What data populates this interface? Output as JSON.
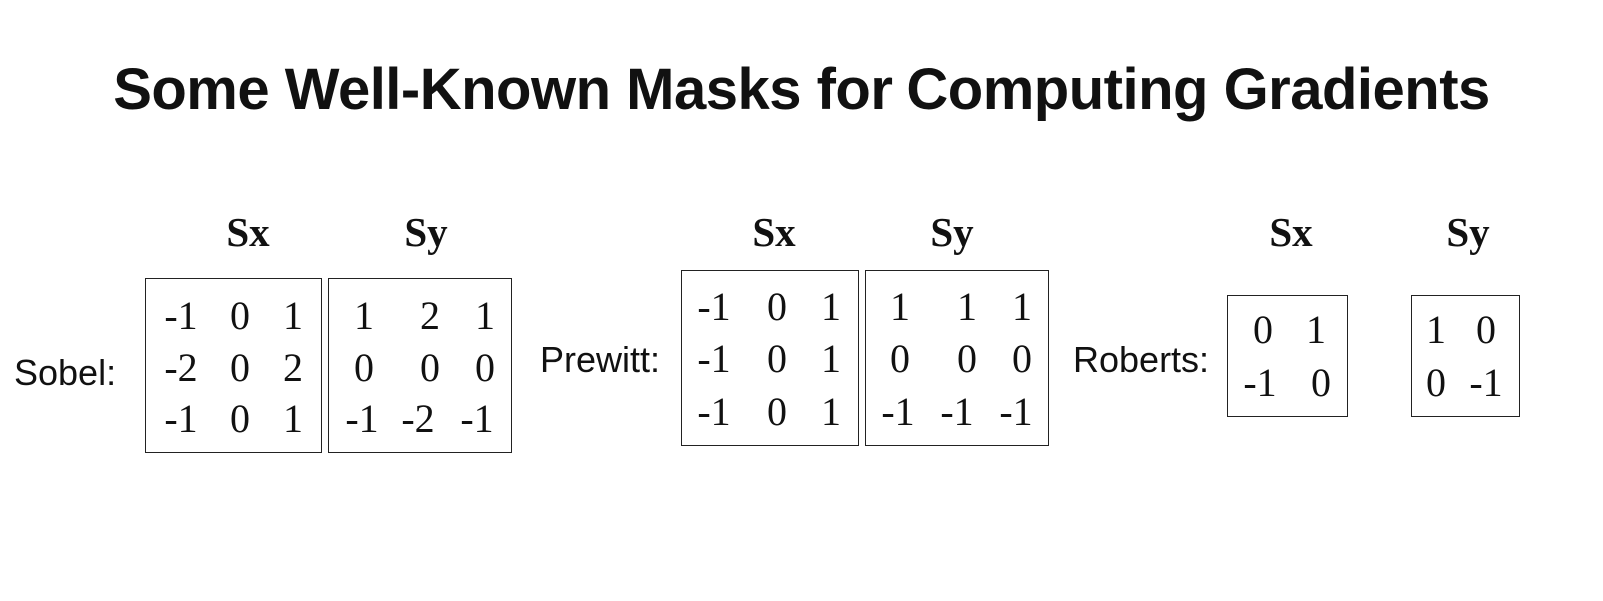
{
  "title": {
    "part1": "Some Well-Known Masks for",
    "part2": "Computing Gradients"
  },
  "operators": [
    {
      "name": "Sobel:",
      "sx_label": "Sx",
      "sy_label": "Sy",
      "sx": [
        [
          "-1",
          "0",
          "1"
        ],
        [
          "-2",
          "0",
          "2"
        ],
        [
          "-1",
          "0",
          "1"
        ]
      ],
      "sy": [
        [
          "1",
          "2",
          "1"
        ],
        [
          "0",
          "0",
          "0"
        ],
        [
          "-1",
          "-2",
          "-1"
        ]
      ]
    },
    {
      "name": "Prewitt:",
      "sx_label": "Sx",
      "sy_label": "Sy",
      "sx": [
        [
          "-1",
          "0",
          "1"
        ],
        [
          "-1",
          "0",
          "1"
        ],
        [
          "-1",
          "0",
          "1"
        ]
      ],
      "sy": [
        [
          "1",
          "1",
          "1"
        ],
        [
          "0",
          "0",
          "0"
        ],
        [
          "-1",
          "-1",
          "-1"
        ]
      ]
    },
    {
      "name": "Roberts:",
      "sx_label": "Sx",
      "sy_label": "Sy",
      "sx": [
        [
          "0",
          "1"
        ],
        [
          "-1",
          "0"
        ]
      ],
      "sy": [
        [
          "1",
          "0"
        ],
        [
          "0",
          "-1"
        ]
      ]
    }
  ]
}
